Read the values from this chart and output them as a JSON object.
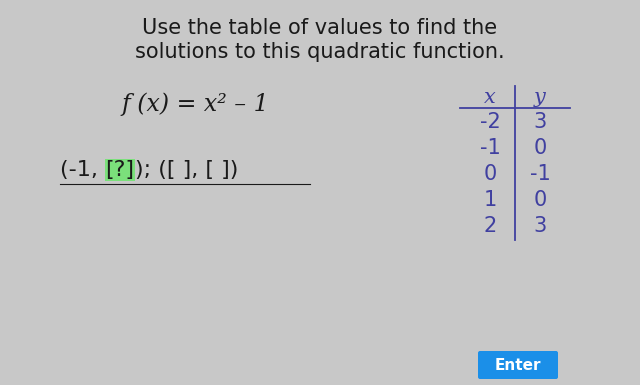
{
  "bg_color": "#c8c8c8",
  "title_line1": "Use the table of values to find the",
  "title_line2": "solutions to this quadratic function.",
  "equation": "f (x) = x² – 1",
  "answer_text1": "(-1, ",
  "answer_highlight": "[?]",
  "answer_text2": "); ([ ], [ ])",
  "highlight_color": "#7be07b",
  "table_header_x": "x",
  "table_header_y": "y",
  "table_data": [
    [
      "-2",
      "3"
    ],
    [
      "-1",
      "0"
    ],
    [
      "0",
      "-1"
    ],
    [
      "1",
      "0"
    ],
    [
      "2",
      "3"
    ]
  ],
  "button_text": "Enter",
  "button_color": "#1b8fe8",
  "button_text_color": "#ffffff",
  "text_color": "#1a1a1a",
  "table_color": "#4040a0",
  "font_size_title": 15,
  "font_size_eq": 17,
  "font_size_answer": 16,
  "font_size_table_header": 15,
  "font_size_table": 15,
  "font_size_button": 11
}
